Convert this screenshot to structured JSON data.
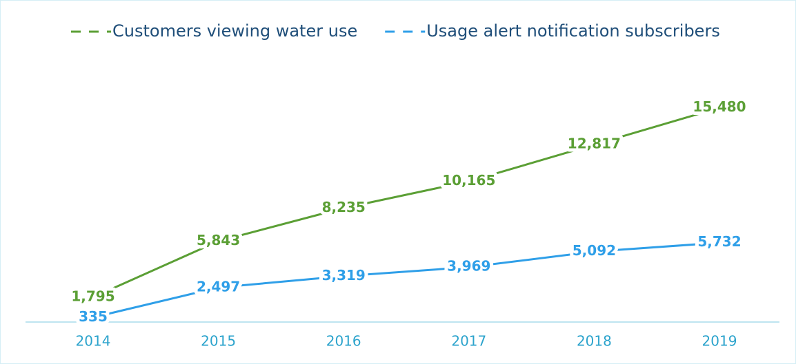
{
  "chart_data": {
    "type": "line",
    "categories": [
      "2014",
      "2015",
      "2016",
      "2017",
      "2018",
      "2019"
    ],
    "series": [
      {
        "name": "Customers viewing water use",
        "color": "#5b9f35",
        "values": [
          1795,
          5843,
          8235,
          10165,
          12817,
          15480
        ],
        "value_labels": [
          "1,795",
          "5,843",
          "8,235",
          "10,165",
          "12,817",
          "15,480"
        ]
      },
      {
        "name": "Usage alert notification subscribers",
        "color": "#2f9fe8",
        "values": [
          335,
          2497,
          3319,
          3969,
          5092,
          5732
        ],
        "value_labels": [
          "335",
          "2,497",
          "3,319",
          "3,969",
          "5,092",
          "5,732"
        ]
      }
    ],
    "ylim": [
      0,
      18000
    ],
    "legend": "top"
  }
}
